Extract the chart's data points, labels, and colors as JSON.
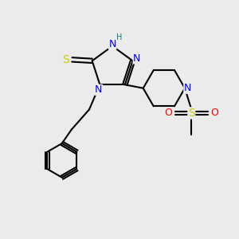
{
  "bg_color": "#ebebeb",
  "atom_colors": {
    "N": "#0000ff",
    "S_thiol": "#cccc00",
    "S_sulfonyl": "#cccc00",
    "O": "#ff0000",
    "C": "#000000",
    "H": "#008080"
  },
  "bond_color": "#000000",
  "bond_width": 1.5,
  "font_size_atom": 9,
  "font_size_H": 7
}
